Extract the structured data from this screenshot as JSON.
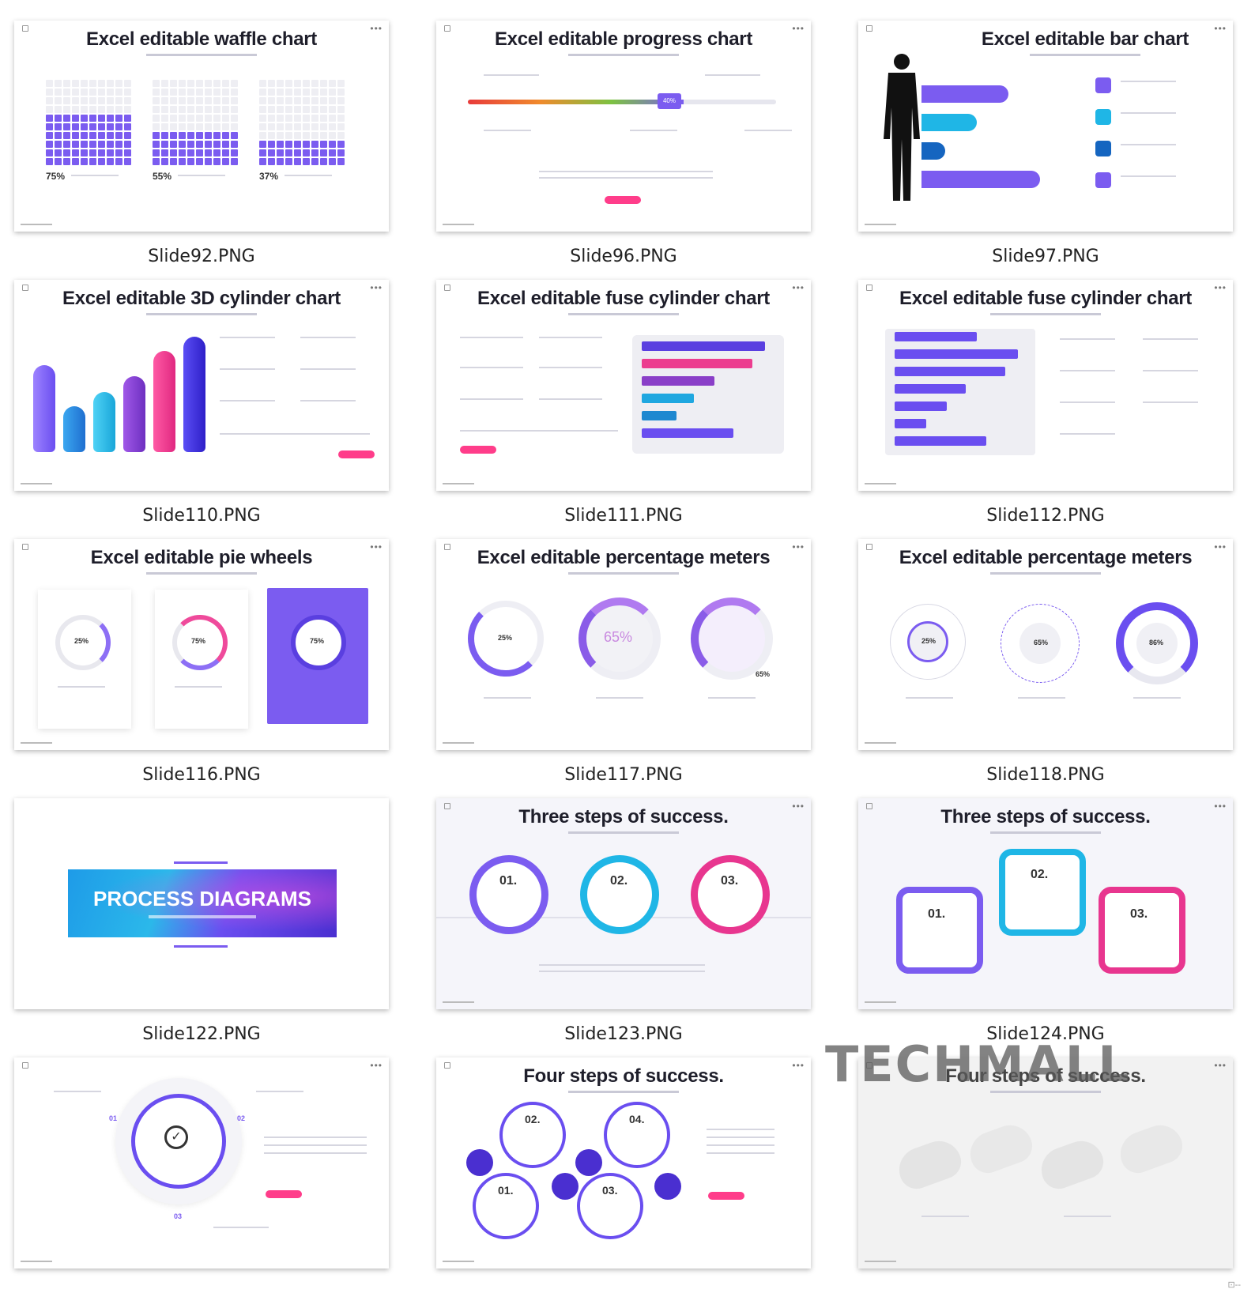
{
  "slides": [
    {
      "title": "Excel editable waffle chart",
      "file": "Slide92.PNG",
      "waffle_values": [
        "75%",
        "55%",
        "37%"
      ]
    },
    {
      "title": "Excel editable progress chart",
      "file": "Slide96.PNG",
      "badge": "40%"
    },
    {
      "title": "Excel editable bar chart",
      "file": "Slide97.PNG"
    },
    {
      "title": "Excel editable 3D cylinder chart",
      "file": "Slide110.PNG"
    },
    {
      "title": "Excel editable fuse cylinder chart",
      "file": "Slide111.PNG"
    },
    {
      "title": "Excel editable fuse cylinder chart",
      "file": "Slide112.PNG"
    },
    {
      "title": "Excel editable pie wheels",
      "file": "Slide116.PNG",
      "wheel_values": [
        "25%",
        "75%",
        "75%"
      ]
    },
    {
      "title": "Excel editable percentage meters",
      "file": "Slide117.PNG",
      "meter_values": [
        "25%",
        "65%",
        "65%"
      ]
    },
    {
      "title": "Excel editable percentage meters",
      "file": "Slide118.PNG",
      "meter_values": [
        "25%",
        "65%",
        "86%"
      ]
    },
    {
      "title": "PROCESS DIAGRAMS",
      "file": "Slide122.PNG"
    },
    {
      "title": "Three steps of success.",
      "file": "Slide123.PNG",
      "steps": [
        "01.",
        "02.",
        "03."
      ]
    },
    {
      "title": "Three steps of success.",
      "file": "Slide124.PNG",
      "steps": [
        "01.",
        "02.",
        "03."
      ]
    },
    {
      "title": "",
      "file": "Slide125.PNG",
      "labels": [
        "01",
        "02",
        "03"
      ]
    },
    {
      "title": "Four steps of success.",
      "file": "Slide126.PNG",
      "steps": [
        "01.",
        "02.",
        "03.",
        "04."
      ]
    },
    {
      "title": "Four steps of success.",
      "file": "Slide127.PNG"
    }
  ],
  "watermark": "TECHMALL",
  "colors": {
    "accent": "#7b5cf0",
    "pink": "#ff3d8a",
    "cyan": "#1fb6e6",
    "indigo": "#4a2fd0"
  }
}
